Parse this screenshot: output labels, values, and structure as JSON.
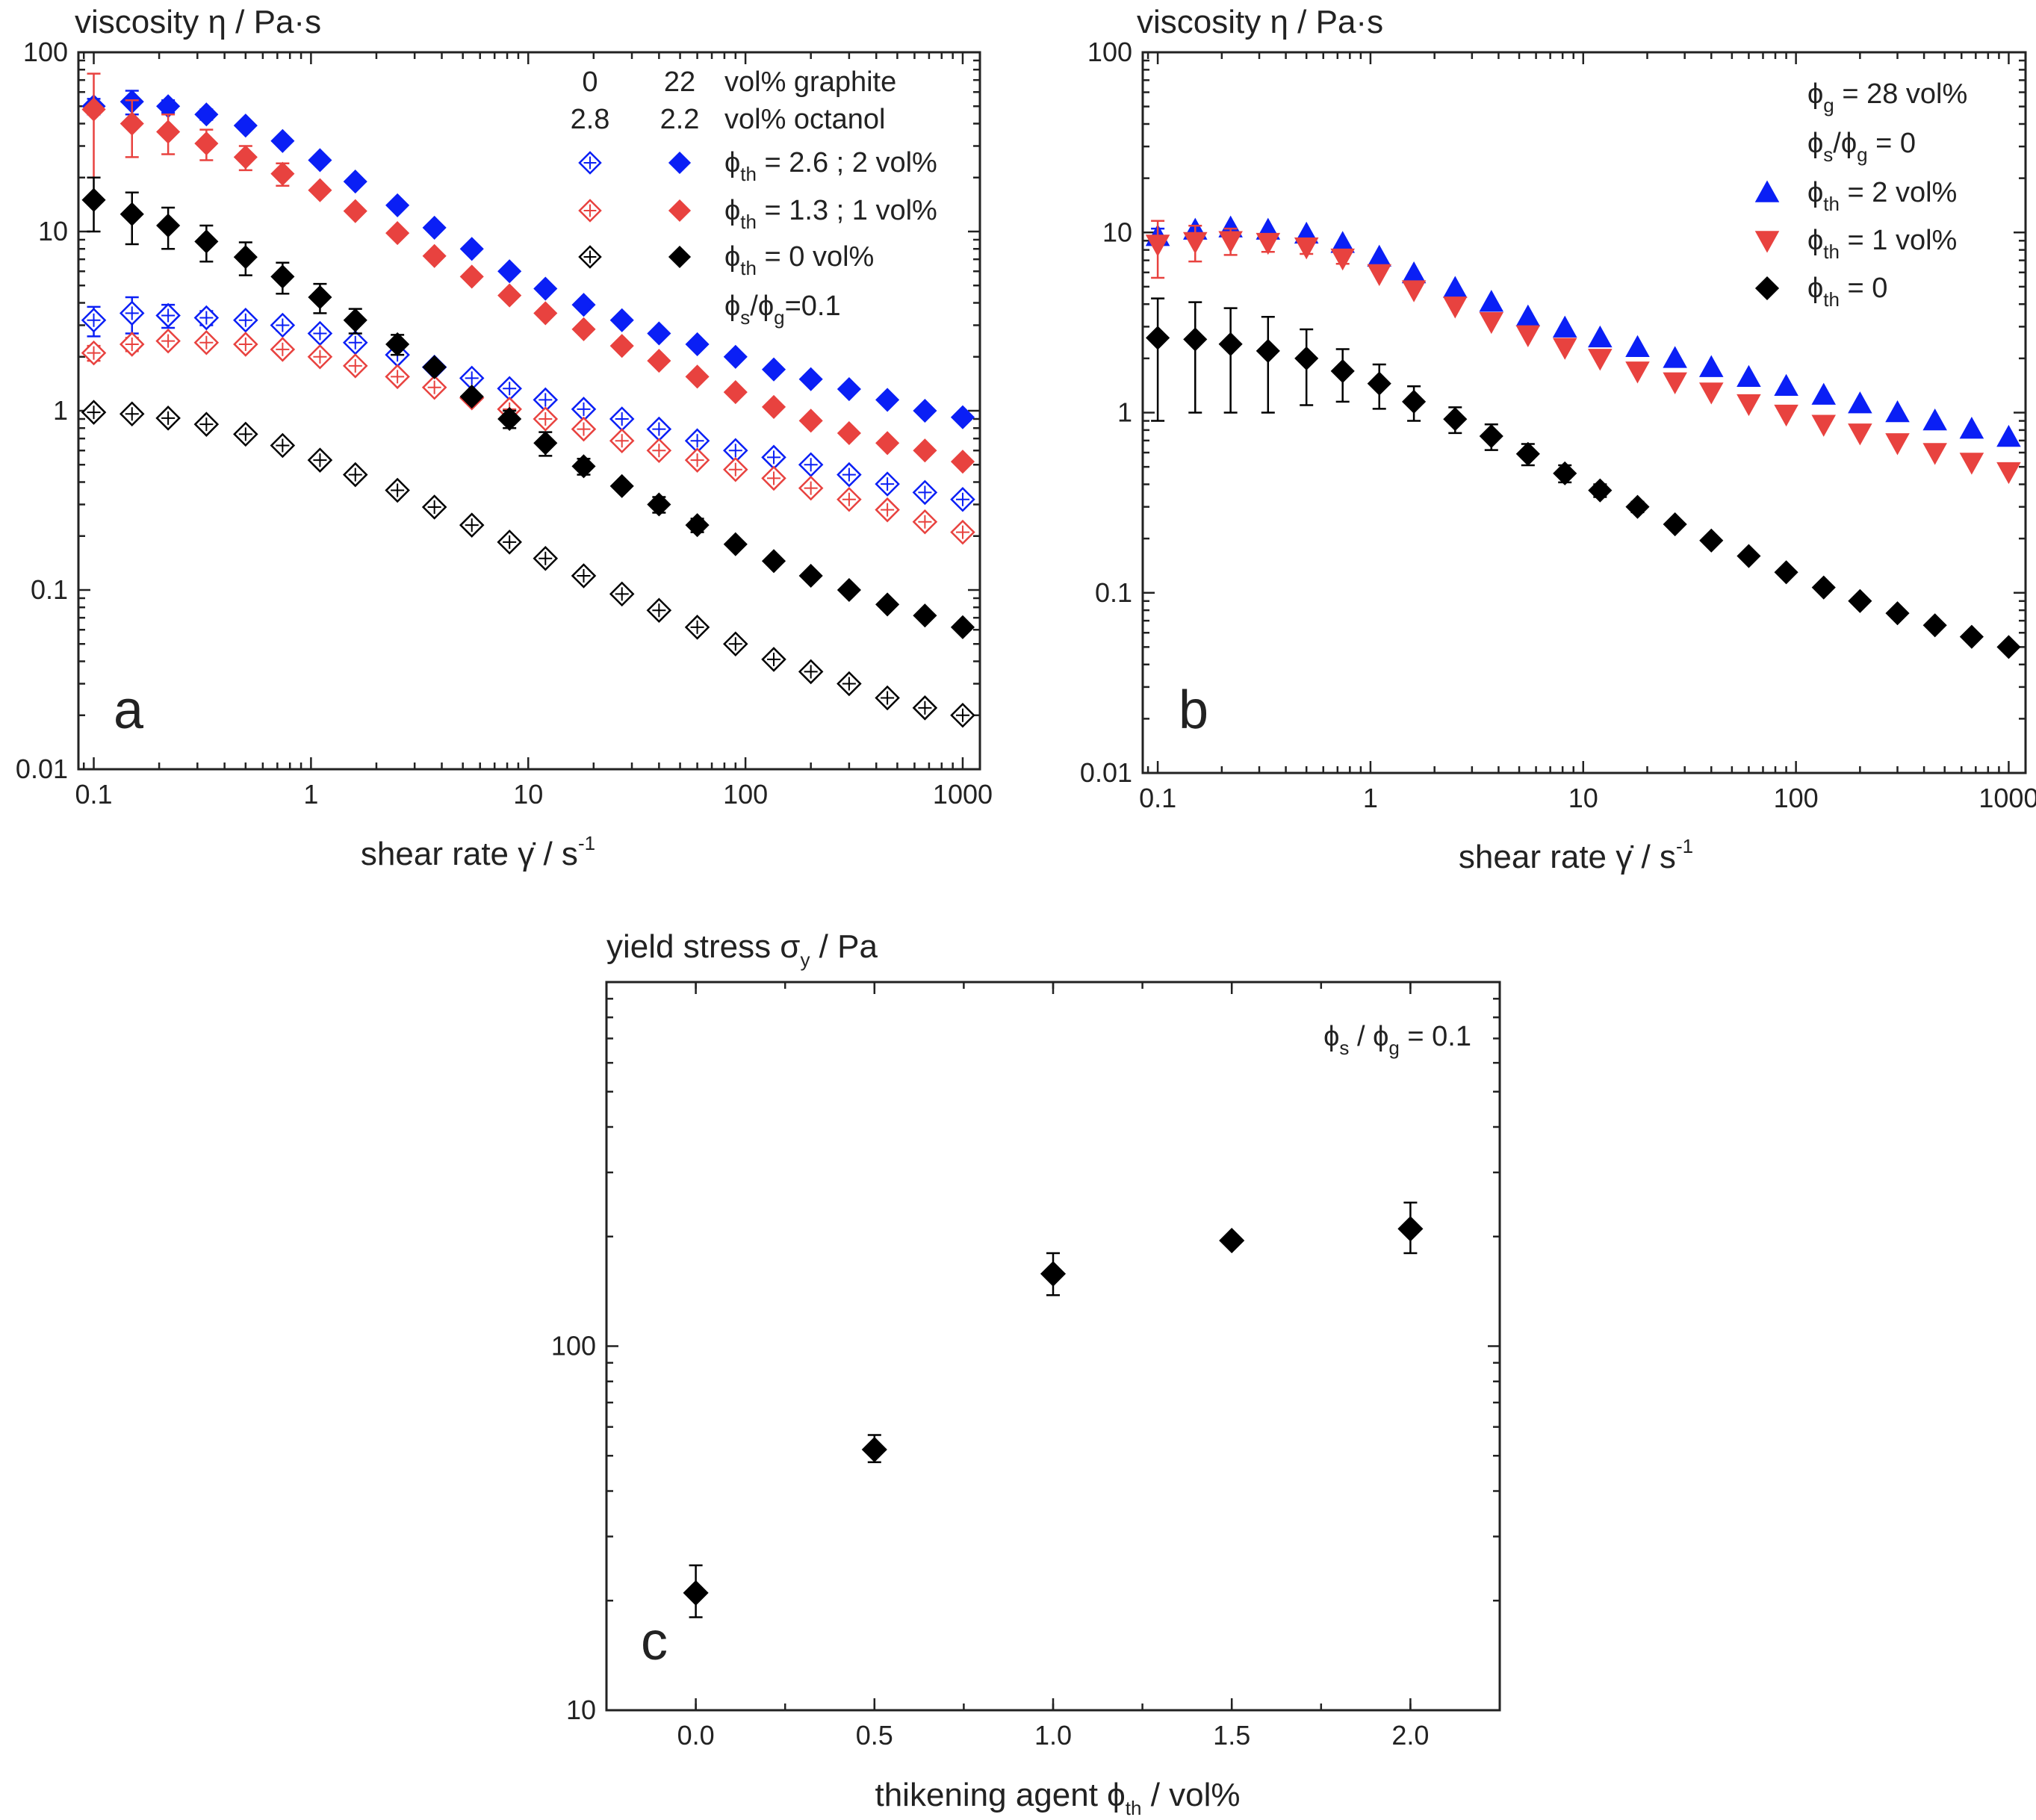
{
  "colors": {
    "blue": "#0a1ff5",
    "red": "#e8423f",
    "black": "#000000",
    "axis": "#222222"
  },
  "chart_data": [
    {
      "id": "a",
      "type": "scatter",
      "panel_label": "a",
      "ylabel": "viscosity η / Pa·s",
      "xlabel": "shear rate γ̇ / s",
      "xlabel_exp": "-1",
      "xscale": "log",
      "yscale": "log",
      "xlim": [
        0.085,
        1200
      ],
      "ylim": [
        0.01,
        100
      ],
      "xticks": [
        0.1,
        1,
        10,
        100,
        1000
      ],
      "xtick_labels": [
        "0.1",
        "1",
        "10",
        "100",
        "1000"
      ],
      "yticks": [
        0.01,
        0.1,
        1,
        10,
        100
      ],
      "ytick_labels": [
        "0.01",
        "0.1",
        "1",
        "10",
        "100"
      ],
      "x": [
        0.1,
        0.15,
        0.22,
        0.33,
        0.5,
        0.74,
        1.1,
        1.6,
        2.5,
        3.7,
        5.5,
        8.2,
        12,
        18,
        27,
        40,
        60,
        90,
        135,
        200,
        300,
        450,
        670,
        1000
      ],
      "legend_header": [
        {
          "left": "0",
          "right": "22",
          "label": "vol% graphite"
        },
        {
          "left": "2.8",
          "right": "2.2",
          "label": "vol% octanol"
        }
      ],
      "legend": [
        {
          "phi": "ϕ",
          "sub": "th",
          "text": " = 2.6 ; 2 vol%",
          "color": "#0a1ff5"
        },
        {
          "phi": "ϕ",
          "sub": "th",
          "text": " = 1.3 ; 1 vol%",
          "color": "#e8423f"
        },
        {
          "phi": "ϕ",
          "sub": "th",
          "text": " = 0 vol%",
          "color": "#000000"
        }
      ],
      "ratio_note": {
        "p1": "ϕ",
        "s1": "s",
        "mid": "/ϕ",
        "s2": "g",
        "end": "=0.1"
      },
      "series": [
        {
          "name": "ϕth = 2.6 vol%, no graphite",
          "color": "#0a1ff5",
          "marker": "open-diamond",
          "values": [
            3.2,
            3.5,
            3.4,
            3.3,
            3.2,
            3.0,
            2.7,
            2.4,
            2.05,
            1.75,
            1.52,
            1.33,
            1.15,
            1.02,
            0.9,
            0.79,
            0.68,
            0.6,
            0.55,
            0.5,
            0.44,
            0.39,
            0.35,
            0.32
          ],
          "err": [
            0.6,
            0.8,
            0.5,
            0.3,
            0.2,
            0.2,
            0.15,
            0.1,
            0,
            0,
            0,
            0,
            0,
            0,
            0,
            0,
            0,
            0,
            0,
            0,
            0,
            0,
            0,
            0
          ]
        },
        {
          "name": "ϕth = 1.3 vol%, no graphite",
          "color": "#e8423f",
          "marker": "open-diamond",
          "values": [
            2.1,
            2.35,
            2.45,
            2.4,
            2.35,
            2.2,
            2.0,
            1.78,
            1.55,
            1.35,
            1.18,
            1.02,
            0.9,
            0.79,
            0.68,
            0.6,
            0.53,
            0.47,
            0.42,
            0.37,
            0.32,
            0.28,
            0.24,
            0.21
          ],
          "err": [
            0.2,
            0.2,
            0.15,
            0.1,
            0.1,
            0,
            0,
            0,
            0,
            0,
            0,
            0,
            0,
            0,
            0,
            0,
            0,
            0,
            0,
            0,
            0,
            0,
            0,
            0
          ]
        },
        {
          "name": "ϕth = 0 vol%, no graphite",
          "color": "#000000",
          "marker": "open-diamond",
          "values": [
            0.98,
            0.96,
            0.91,
            0.84,
            0.74,
            0.64,
            0.53,
            0.44,
            0.36,
            0.29,
            0.23,
            0.185,
            0.15,
            0.12,
            0.095,
            0.077,
            0.062,
            0.05,
            0.041,
            0.035,
            0.03,
            0.025,
            0.022,
            0.02
          ],
          "err": [
            0,
            0,
            0,
            0,
            0,
            0,
            0,
            0,
            0,
            0,
            0,
            0,
            0,
            0,
            0,
            0,
            0,
            0,
            0,
            0,
            0,
            0,
            0,
            0
          ]
        },
        {
          "name": "ϕth = 2 vol%, 22 vol% graphite",
          "color": "#0a1ff5",
          "marker": "filled-diamond",
          "values": [
            50,
            53,
            50,
            45,
            39,
            32,
            25,
            19,
            14,
            10.5,
            8,
            6,
            4.8,
            3.9,
            3.2,
            2.7,
            2.35,
            2.0,
            1.7,
            1.5,
            1.32,
            1.15,
            1.0,
            0.92
          ],
          "err": [
            5,
            8,
            4,
            3,
            0,
            0,
            0,
            0,
            0,
            0,
            0,
            0,
            0,
            0,
            0,
            0,
            0,
            0,
            0,
            0,
            0,
            0,
            0,
            0
          ]
        },
        {
          "name": "ϕth = 1 vol%, 22 vol% graphite",
          "color": "#e8423f",
          "marker": "filled-diamond",
          "values": [
            48,
            40,
            36,
            31,
            26,
            21,
            17,
            13,
            9.8,
            7.3,
            5.6,
            4.4,
            3.5,
            2.85,
            2.3,
            1.9,
            1.55,
            1.27,
            1.05,
            0.88,
            0.75,
            0.66,
            0.6,
            0.52
          ],
          "err": [
            28,
            14,
            9,
            6,
            4,
            3,
            0,
            0,
            0,
            0,
            0,
            0,
            0,
            0,
            0,
            0,
            0,
            0,
            0,
            0,
            0,
            0,
            0,
            0
          ]
        },
        {
          "name": "ϕth = 0 vol%, 22 vol% graphite",
          "color": "#000000",
          "marker": "filled-diamond",
          "values": [
            15,
            12.5,
            10.8,
            8.8,
            7.2,
            5.6,
            4.3,
            3.2,
            2.35,
            1.75,
            1.2,
            0.9,
            0.66,
            0.49,
            0.38,
            0.3,
            0.23,
            0.18,
            0.145,
            0.12,
            0.1,
            0.083,
            0.072,
            0.062
          ],
          "err": [
            5,
            4,
            2.8,
            2,
            1.5,
            1.1,
            0.8,
            0.5,
            0.3,
            0,
            0,
            0.1,
            0.1,
            0.05,
            0,
            0.03,
            0.02,
            0,
            0,
            0,
            0,
            0,
            0,
            0
          ]
        }
      ]
    },
    {
      "id": "b",
      "type": "scatter",
      "panel_label": "b",
      "ylabel": "viscosity η / Pa·s",
      "xlabel": "shear rate γ̇ / s",
      "xlabel_exp": "-1",
      "xscale": "log",
      "yscale": "log",
      "xlim": [
        0.085,
        1200
      ],
      "ylim": [
        0.01,
        100
      ],
      "xticks": [
        0.1,
        1,
        10,
        100,
        1000
      ],
      "xtick_labels": [
        "0.1",
        "1",
        "10",
        "100",
        "1000"
      ],
      "yticks": [
        0.01,
        0.1,
        1,
        10,
        100
      ],
      "ytick_labels": [
        "0.01",
        "0.1",
        "1",
        "10",
        "100"
      ],
      "x": [
        0.1,
        0.15,
        0.22,
        0.33,
        0.5,
        0.74,
        1.1,
        1.6,
        2.5,
        3.7,
        5.5,
        8.2,
        12,
        18,
        27,
        40,
        60,
        90,
        135,
        200,
        300,
        450,
        670,
        1000
      ],
      "notes": [
        {
          "phi": "ϕ",
          "sub": "g",
          "text": " = 28 vol%"
        },
        {
          "phi": "ϕ",
          "sub": "s",
          "text": "/ϕ",
          "sub2": "g",
          "text2": " = 0"
        }
      ],
      "legend": [
        {
          "phi": "ϕ",
          "sub": "th",
          "text": " = 2 vol%",
          "color": "#0a1ff5",
          "marker": "triangle-up"
        },
        {
          "phi": "ϕ",
          "sub": "th",
          "text": " = 1 vol%",
          "color": "#e8423f",
          "marker": "triangle-down"
        },
        {
          "phi": "ϕ",
          "sub": "th",
          "text": " = 0",
          "color": "#000000",
          "marker": "filled-diamond"
        }
      ],
      "series": [
        {
          "name": "ϕth = 2 vol%",
          "color": "#0a1ff5",
          "marker": "triangle-up",
          "values": [
            9.5,
            10.3,
            10.6,
            10.3,
            9.8,
            8.7,
            7.3,
            5.9,
            4.9,
            4.1,
            3.4,
            2.95,
            2.6,
            2.3,
            2.0,
            1.78,
            1.57,
            1.4,
            1.25,
            1.12,
            1.0,
            0.9,
            0.81,
            0.73
          ],
          "err": [
            1,
            0,
            0,
            0,
            0,
            0,
            0,
            0,
            0,
            0,
            0,
            0,
            0,
            0,
            0,
            0,
            0,
            0,
            0,
            0,
            0,
            0,
            0,
            0
          ]
        },
        {
          "name": "ϕth = 1 vol%",
          "color": "#e8423f",
          "marker": "triangle-down",
          "values": [
            8.6,
            8.9,
            9.0,
            8.8,
            8.3,
            7.2,
            5.9,
            4.8,
            3.9,
            3.2,
            2.7,
            2.3,
            2.0,
            1.7,
            1.48,
            1.3,
            1.12,
            0.98,
            0.86,
            0.77,
            0.68,
            0.6,
            0.53,
            0.47
          ],
          "err": [
            3,
            2,
            1.5,
            1,
            0.7,
            0.5,
            0,
            0,
            0,
            0,
            0,
            0,
            0,
            0,
            0,
            0,
            0,
            0,
            0,
            0,
            0,
            0,
            0,
            0
          ]
        },
        {
          "name": "ϕth = 0",
          "color": "#000000",
          "marker": "filled-diamond",
          "values": [
            2.6,
            2.55,
            2.4,
            2.2,
            2.0,
            1.7,
            1.45,
            1.15,
            0.92,
            0.74,
            0.59,
            0.46,
            0.37,
            0.3,
            0.24,
            0.195,
            0.16,
            0.13,
            0.107,
            0.09,
            0.077,
            0.066,
            0.057,
            0.05
          ],
          "err": [
            1.7,
            1.55,
            1.4,
            1.2,
            0.9,
            0.55,
            0.4,
            0.25,
            0.15,
            0.12,
            0.08,
            0.05,
            0.03,
            0.02,
            0,
            0,
            0,
            0,
            0,
            0,
            0,
            0,
            0,
            0
          ]
        }
      ]
    },
    {
      "id": "c",
      "type": "scatter",
      "panel_label": "c",
      "ylabel": "yield stress σ",
      "ylabel_sub": "y",
      "ylabel_end": " / Pa",
      "xlabel": "thikening agent ϕ",
      "xlabel_sub": "th",
      "xlabel_end": " / vol%",
      "xscale": "linear",
      "yscale": "log",
      "xlim": [
        -0.25,
        2.25
      ],
      "ylim": [
        10,
        1000
      ],
      "xticks": [
        0.0,
        0.5,
        1.0,
        1.5,
        2.0
      ],
      "xtick_labels": [
        "0.0",
        "0.5",
        "1.0",
        "1.5",
        "2.0"
      ],
      "yticks": [
        10,
        100
      ],
      "ytick_labels": [
        "10",
        "100"
      ],
      "note": {
        "p1": "ϕ",
        "s1": "s",
        "mid": " / ϕ",
        "s2": "g",
        "end": " = 0.1"
      },
      "series": [
        {
          "name": "yield stress",
          "color": "#000000",
          "marker": "filled-diamond",
          "x": [
            0.0,
            0.5,
            1.0,
            1.5,
            2.0
          ],
          "values": [
            21,
            52,
            158,
            195,
            210
          ],
          "err_lo": [
            3,
            4,
            20,
            0,
            30
          ],
          "err_hi": [
            4,
            5,
            22,
            0,
            38
          ]
        }
      ]
    }
  ]
}
